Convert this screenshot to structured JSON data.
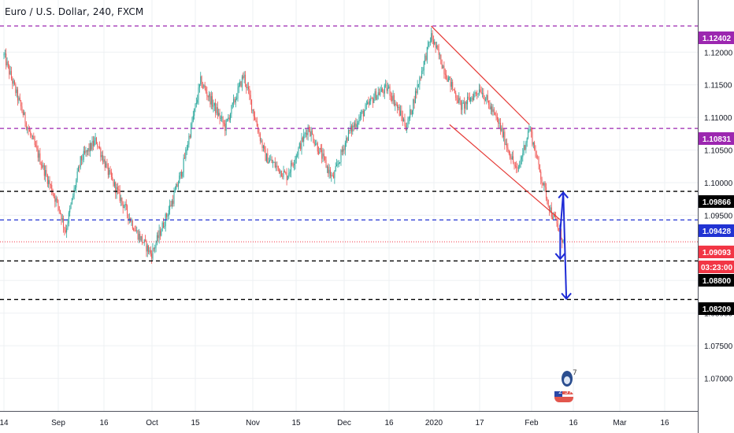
{
  "header": {
    "title": "Euro / U.S. Dollar, 240, FXCM"
  },
  "colors": {
    "up_candle": "#26a69a",
    "down_candle": "#ef5350",
    "purple_line": "#9c27b0",
    "black_line": "#000000",
    "blue_line": "#2133d3",
    "red_line": "#f23645",
    "channel_line": "#e53935",
    "arrow": "#1e2bd6",
    "grid": "#eef0f3",
    "axis_text": "#131722"
  },
  "price_tags": [
    {
      "label": "1.12402",
      "value": 1.12402,
      "style": "purple"
    },
    {
      "label": "1.10831",
      "value": 1.10831,
      "style": "purple"
    },
    {
      "label": "1.09866",
      "value": 1.09866,
      "style": "black"
    },
    {
      "label": "1.09428",
      "value": 1.09428,
      "style": "blue"
    },
    {
      "label": "1.09093",
      "value": 1.09093,
      "style": "red"
    },
    {
      "label": "03:23:00",
      "value": 1.09,
      "style": "red"
    },
    {
      "label": "1.08800",
      "value": 1.088,
      "style": "black"
    },
    {
      "label": "1.08209",
      "value": 1.08209,
      "style": "black"
    }
  ],
  "emoji": {
    "top_text": "7",
    "bottom_text": "2 37"
  },
  "chart_data": {
    "type": "candlestick",
    "title": "Euro / U.S. Dollar, 240, FXCM",
    "ylim": [
      1.065,
      1.128
    ],
    "y_ticks": [
      "1.12000",
      "1.11500",
      "1.11000",
      "1.10500",
      "1.10000",
      "1.09500",
      "1.09000",
      "1.08500",
      "1.08000",
      "1.07500",
      "1.07000"
    ],
    "y_tick_values": [
      1.12,
      1.115,
      1.11,
      1.105,
      1.1,
      1.095,
      1.09,
      1.085,
      1.08,
      1.075,
      1.07
    ],
    "x_ticks": [
      "14",
      "Sep",
      "16",
      "Oct",
      "15",
      "Nov",
      "15",
      "Dec",
      "16",
      "2020",
      "17",
      "Feb",
      "16",
      "Mar",
      "16"
    ],
    "x_tick_dates": [
      "2019-08-14",
      "2019-09-01",
      "2019-09-16",
      "2019-10-01",
      "2019-10-15",
      "2019-11-01",
      "2019-11-15",
      "2019-12-01",
      "2019-12-16",
      "2020-01-01",
      "2020-01-17",
      "2020-02-01",
      "2020-02-16",
      "2020-03-01",
      "2020-03-16"
    ],
    "grid": true,
    "key_points": [
      {
        "date": "2019-08-14",
        "close": 1.1195
      },
      {
        "date": "2019-08-22",
        "close": 1.108
      },
      {
        "date": "2019-09-01",
        "close": 1.096
      },
      {
        "date": "2019-09-03",
        "close": 1.0925
      },
      {
        "date": "2019-09-08",
        "close": 1.1035
      },
      {
        "date": "2019-09-13",
        "close": 1.1065
      },
      {
        "date": "2019-09-17",
        "close": 1.1015
      },
      {
        "date": "2019-09-26",
        "close": 1.0925
      },
      {
        "date": "2019-10-01",
        "close": 1.089
      },
      {
        "date": "2019-10-08",
        "close": 1.0975
      },
      {
        "date": "2019-10-11",
        "close": 1.102
      },
      {
        "date": "2019-10-17",
        "close": 1.1155
      },
      {
        "date": "2019-10-25",
        "close": 1.1085
      },
      {
        "date": "2019-10-31",
        "close": 1.1165
      },
      {
        "date": "2019-11-07",
        "close": 1.104
      },
      {
        "date": "2019-11-14",
        "close": 1.101
      },
      {
        "date": "2019-11-21",
        "close": 1.1085
      },
      {
        "date": "2019-11-29",
        "close": 1.1005
      },
      {
        "date": "2019-12-04",
        "close": 1.1075
      },
      {
        "date": "2019-12-13",
        "close": 1.1135
      },
      {
        "date": "2019-12-17",
        "close": 1.1145
      },
      {
        "date": "2019-12-23",
        "close": 1.1085
      },
      {
        "date": "2019-12-31",
        "close": 1.1225
      },
      {
        "date": "2020-01-05",
        "close": 1.1165
      },
      {
        "date": "2020-01-10",
        "close": 1.1115
      },
      {
        "date": "2020-01-16",
        "close": 1.1145
      },
      {
        "date": "2020-01-22",
        "close": 1.109
      },
      {
        "date": "2020-01-28",
        "close": 1.1015
      },
      {
        "date": "2020-02-01",
        "close": 1.1085
      },
      {
        "date": "2020-02-05",
        "close": 1.1005
      },
      {
        "date": "2020-02-08",
        "close": 1.0955
      },
      {
        "date": "2020-02-10",
        "close": 1.0935
      },
      {
        "date": "2020-02-12",
        "close": 1.0909
      }
    ],
    "horizontal_levels": [
      {
        "value": 1.12402,
        "style": "purple-dashed"
      },
      {
        "value": 1.10831,
        "style": "purple-dashed"
      },
      {
        "value": 1.09866,
        "style": "black-dashed"
      },
      {
        "value": 1.09428,
        "style": "blue-dashed"
      },
      {
        "value": 1.09093,
        "style": "red-dotted"
      },
      {
        "value": 1.088,
        "style": "black-dashed"
      },
      {
        "value": 1.08209,
        "style": "black-dashed"
      }
    ],
    "channel": {
      "upper": [
        {
          "date": "2019-12-31",
          "value": 1.12402
        },
        {
          "date": "2020-02-01",
          "value": 1.1089
        }
      ],
      "lower": [
        {
          "date": "2020-01-06",
          "value": 1.1089
        },
        {
          "date": "2020-02-11",
          "value": 1.0943
        }
      ]
    },
    "arrows": [
      {
        "from_date": "2020-02-11",
        "from_value": 1.0925,
        "to_date": "2020-02-12",
        "to_value": 1.0985
      },
      {
        "from_date": "2020-02-12",
        "from_value": 1.0985,
        "to_date": "2020-02-13",
        "to_value": 1.0822
      },
      {
        "from_date": "2020-02-11",
        "from_value": 1.0935,
        "to_date": "2020-02-11",
        "to_value": 1.0883
      }
    ]
  }
}
